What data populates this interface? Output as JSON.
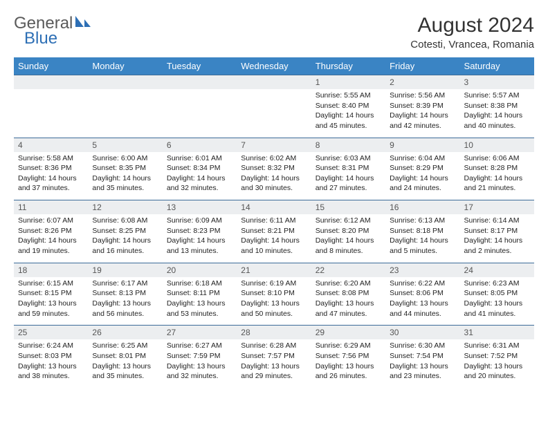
{
  "logo": {
    "text1": "General",
    "text2": "Blue"
  },
  "header": {
    "title": "August 2024",
    "location": "Cotesti, Vrancea, Romania"
  },
  "colors": {
    "header_bg": "#3a84c4",
    "header_text": "#ffffff",
    "daynum_bg": "#eceef0",
    "row_border": "#3a6a98",
    "logo_gray": "#5a5a5a",
    "logo_blue": "#2d6fb5"
  },
  "weekdays": [
    "Sunday",
    "Monday",
    "Tuesday",
    "Wednesday",
    "Thursday",
    "Friday",
    "Saturday"
  ],
  "weeks": [
    [
      null,
      null,
      null,
      null,
      {
        "n": "1",
        "sr": "Sunrise: 5:55 AM",
        "ss": "Sunset: 8:40 PM",
        "d1": "Daylight: 14 hours",
        "d2": "and 45 minutes."
      },
      {
        "n": "2",
        "sr": "Sunrise: 5:56 AM",
        "ss": "Sunset: 8:39 PM",
        "d1": "Daylight: 14 hours",
        "d2": "and 42 minutes."
      },
      {
        "n": "3",
        "sr": "Sunrise: 5:57 AM",
        "ss": "Sunset: 8:38 PM",
        "d1": "Daylight: 14 hours",
        "d2": "and 40 minutes."
      }
    ],
    [
      {
        "n": "4",
        "sr": "Sunrise: 5:58 AM",
        "ss": "Sunset: 8:36 PM",
        "d1": "Daylight: 14 hours",
        "d2": "and 37 minutes."
      },
      {
        "n": "5",
        "sr": "Sunrise: 6:00 AM",
        "ss": "Sunset: 8:35 PM",
        "d1": "Daylight: 14 hours",
        "d2": "and 35 minutes."
      },
      {
        "n": "6",
        "sr": "Sunrise: 6:01 AM",
        "ss": "Sunset: 8:34 PM",
        "d1": "Daylight: 14 hours",
        "d2": "and 32 minutes."
      },
      {
        "n": "7",
        "sr": "Sunrise: 6:02 AM",
        "ss": "Sunset: 8:32 PM",
        "d1": "Daylight: 14 hours",
        "d2": "and 30 minutes."
      },
      {
        "n": "8",
        "sr": "Sunrise: 6:03 AM",
        "ss": "Sunset: 8:31 PM",
        "d1": "Daylight: 14 hours",
        "d2": "and 27 minutes."
      },
      {
        "n": "9",
        "sr": "Sunrise: 6:04 AM",
        "ss": "Sunset: 8:29 PM",
        "d1": "Daylight: 14 hours",
        "d2": "and 24 minutes."
      },
      {
        "n": "10",
        "sr": "Sunrise: 6:06 AM",
        "ss": "Sunset: 8:28 PM",
        "d1": "Daylight: 14 hours",
        "d2": "and 21 minutes."
      }
    ],
    [
      {
        "n": "11",
        "sr": "Sunrise: 6:07 AM",
        "ss": "Sunset: 8:26 PM",
        "d1": "Daylight: 14 hours",
        "d2": "and 19 minutes."
      },
      {
        "n": "12",
        "sr": "Sunrise: 6:08 AM",
        "ss": "Sunset: 8:25 PM",
        "d1": "Daylight: 14 hours",
        "d2": "and 16 minutes."
      },
      {
        "n": "13",
        "sr": "Sunrise: 6:09 AM",
        "ss": "Sunset: 8:23 PM",
        "d1": "Daylight: 14 hours",
        "d2": "and 13 minutes."
      },
      {
        "n": "14",
        "sr": "Sunrise: 6:11 AM",
        "ss": "Sunset: 8:21 PM",
        "d1": "Daylight: 14 hours",
        "d2": "and 10 minutes."
      },
      {
        "n": "15",
        "sr": "Sunrise: 6:12 AM",
        "ss": "Sunset: 8:20 PM",
        "d1": "Daylight: 14 hours",
        "d2": "and 8 minutes."
      },
      {
        "n": "16",
        "sr": "Sunrise: 6:13 AM",
        "ss": "Sunset: 8:18 PM",
        "d1": "Daylight: 14 hours",
        "d2": "and 5 minutes."
      },
      {
        "n": "17",
        "sr": "Sunrise: 6:14 AM",
        "ss": "Sunset: 8:17 PM",
        "d1": "Daylight: 14 hours",
        "d2": "and 2 minutes."
      }
    ],
    [
      {
        "n": "18",
        "sr": "Sunrise: 6:15 AM",
        "ss": "Sunset: 8:15 PM",
        "d1": "Daylight: 13 hours",
        "d2": "and 59 minutes."
      },
      {
        "n": "19",
        "sr": "Sunrise: 6:17 AM",
        "ss": "Sunset: 8:13 PM",
        "d1": "Daylight: 13 hours",
        "d2": "and 56 minutes."
      },
      {
        "n": "20",
        "sr": "Sunrise: 6:18 AM",
        "ss": "Sunset: 8:11 PM",
        "d1": "Daylight: 13 hours",
        "d2": "and 53 minutes."
      },
      {
        "n": "21",
        "sr": "Sunrise: 6:19 AM",
        "ss": "Sunset: 8:10 PM",
        "d1": "Daylight: 13 hours",
        "d2": "and 50 minutes."
      },
      {
        "n": "22",
        "sr": "Sunrise: 6:20 AM",
        "ss": "Sunset: 8:08 PM",
        "d1": "Daylight: 13 hours",
        "d2": "and 47 minutes."
      },
      {
        "n": "23",
        "sr": "Sunrise: 6:22 AM",
        "ss": "Sunset: 8:06 PM",
        "d1": "Daylight: 13 hours",
        "d2": "and 44 minutes."
      },
      {
        "n": "24",
        "sr": "Sunrise: 6:23 AM",
        "ss": "Sunset: 8:05 PM",
        "d1": "Daylight: 13 hours",
        "d2": "and 41 minutes."
      }
    ],
    [
      {
        "n": "25",
        "sr": "Sunrise: 6:24 AM",
        "ss": "Sunset: 8:03 PM",
        "d1": "Daylight: 13 hours",
        "d2": "and 38 minutes."
      },
      {
        "n": "26",
        "sr": "Sunrise: 6:25 AM",
        "ss": "Sunset: 8:01 PM",
        "d1": "Daylight: 13 hours",
        "d2": "and 35 minutes."
      },
      {
        "n": "27",
        "sr": "Sunrise: 6:27 AM",
        "ss": "Sunset: 7:59 PM",
        "d1": "Daylight: 13 hours",
        "d2": "and 32 minutes."
      },
      {
        "n": "28",
        "sr": "Sunrise: 6:28 AM",
        "ss": "Sunset: 7:57 PM",
        "d1": "Daylight: 13 hours",
        "d2": "and 29 minutes."
      },
      {
        "n": "29",
        "sr": "Sunrise: 6:29 AM",
        "ss": "Sunset: 7:56 PM",
        "d1": "Daylight: 13 hours",
        "d2": "and 26 minutes."
      },
      {
        "n": "30",
        "sr": "Sunrise: 6:30 AM",
        "ss": "Sunset: 7:54 PM",
        "d1": "Daylight: 13 hours",
        "d2": "and 23 minutes."
      },
      {
        "n": "31",
        "sr": "Sunrise: 6:31 AM",
        "ss": "Sunset: 7:52 PM",
        "d1": "Daylight: 13 hours",
        "d2": "and 20 minutes."
      }
    ]
  ]
}
